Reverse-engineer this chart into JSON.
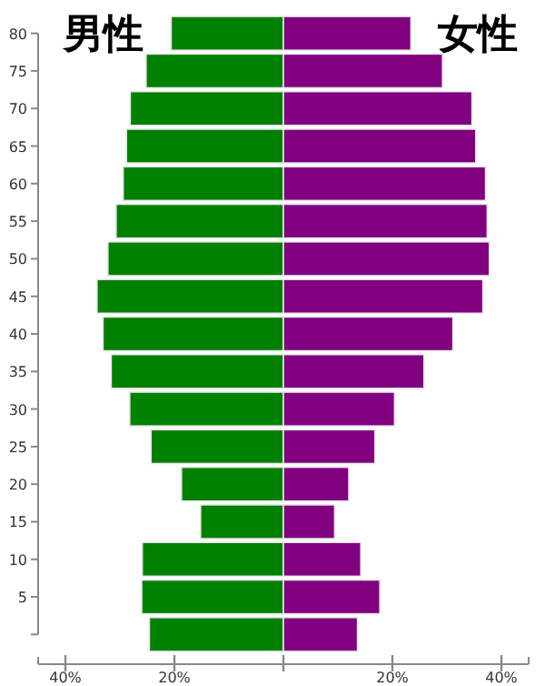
{
  "chart_data": {
    "type": "bar",
    "orientation": "horizontal",
    "stacked": true,
    "categories": [
      "80",
      "75",
      "70",
      "65",
      "60",
      "55",
      "50",
      "45",
      "40",
      "35",
      "30",
      "25",
      "20",
      "15",
      "10",
      "5",
      null
    ],
    "series": [
      {
        "name": "男性",
        "color": "#008000",
        "values": [
          -20.6,
          -25.2,
          -28.1,
          -28.8,
          -29.4,
          -30.7,
          -32.2,
          -34.2,
          -33.1,
          -31.6,
          -28.2,
          -24.3,
          -18.7,
          -15.2,
          -25.9,
          -26.0,
          -24.6
        ]
      },
      {
        "name": "女性",
        "color": "#800080",
        "values": [
          23.4,
          29.2,
          34.6,
          35.3,
          37.1,
          37.4,
          37.8,
          36.6,
          31.1,
          25.8,
          20.4,
          16.8,
          12.0,
          9.4,
          14.2,
          17.7,
          13.6
        ]
      }
    ],
    "xlim": [
      -45,
      45
    ],
    "xticks": [
      {
        "value": -40,
        "label": "40%"
      },
      {
        "value": -20,
        "label": "20%"
      },
      {
        "value": 0,
        "label": null
      },
      {
        "value": 20,
        "label": "20%"
      },
      {
        "value": 40,
        "label": "40%"
      }
    ]
  }
}
